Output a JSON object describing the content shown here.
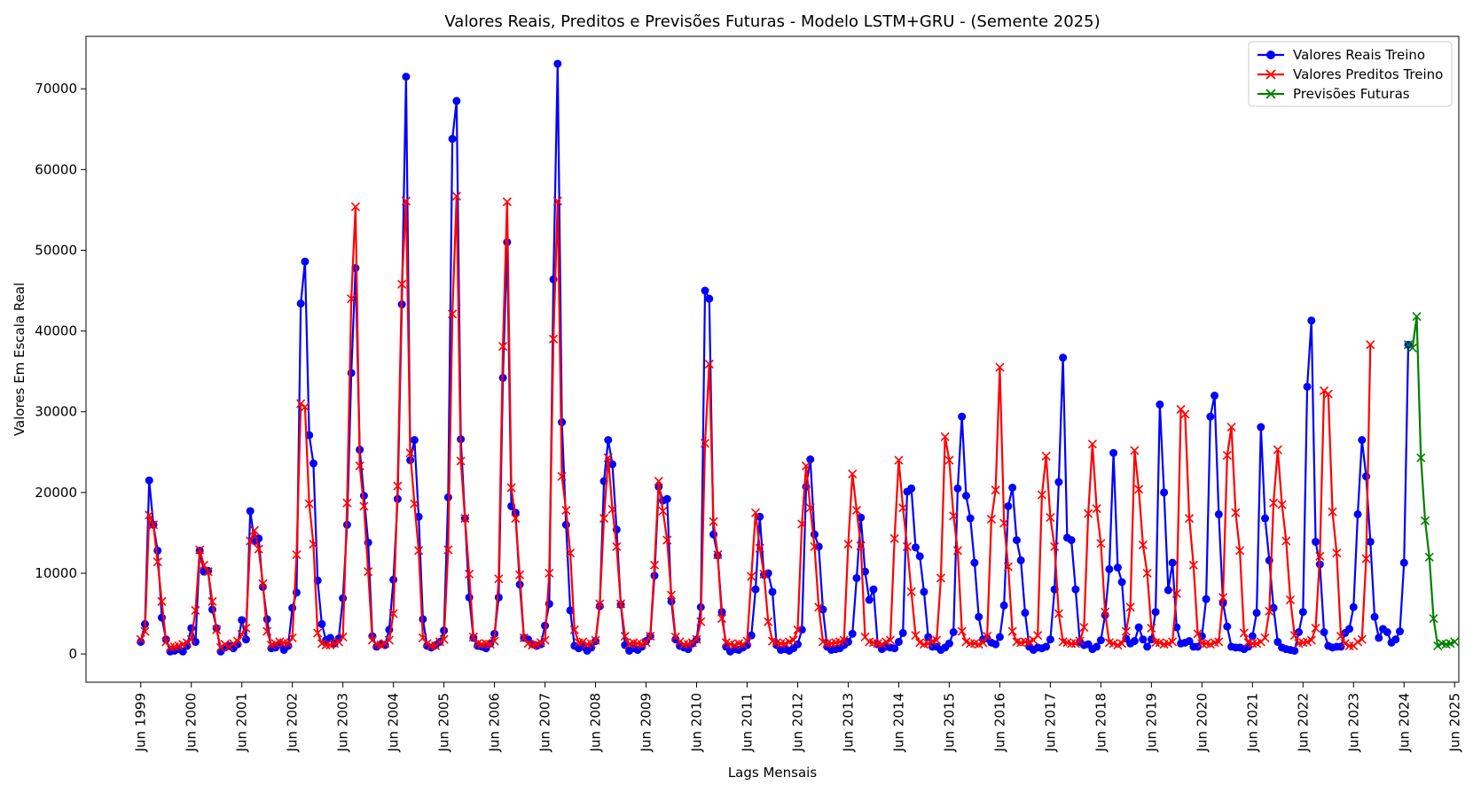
{
  "chart_data": {
    "type": "line",
    "title": "Valores Reais, Preditos e Previsões Futuras - Modelo LSTM+GRU - (Semente 2025)",
    "xlabel": "Lags Mensais",
    "ylabel": "Valores Em Escala Real",
    "ylim": [
      -3500,
      76500
    ],
    "xlim_months_from_jun1999": [
      -13,
      313
    ],
    "y_ticks": [
      0,
      10000,
      20000,
      30000,
      40000,
      50000,
      60000,
      70000
    ],
    "x_ticks": [
      "Jun 1999",
      "Jun 2000",
      "Jun 2001",
      "Jun 2002",
      "Jun 2003",
      "Jun 2004",
      "Jun 2005",
      "Jun 2006",
      "Jun 2007",
      "Jun 2008",
      "Jun 2009",
      "Jun 2010",
      "Jun 2011",
      "Jun 2012",
      "Jun 2013",
      "Jun 2014",
      "Jun 2015",
      "Jun 2016",
      "Jun 2017",
      "Jun 2018",
      "Jun 2019",
      "Jun 2020",
      "Jun 2021",
      "Jun 2022",
      "Jun 2023",
      "Jun 2024",
      "Jun 2025"
    ],
    "legend_position": "top-right",
    "start_label": "Jun 1999",
    "series": [
      {
        "name": "Valores Reais Treino",
        "color": "#0000ff",
        "marker": "circle",
        "values": [
          1500,
          3700,
          21500,
          16000,
          12800,
          4500,
          1800,
          300,
          400,
          600,
          300,
          1000,
          3200,
          1500,
          12800,
          10200,
          10300,
          5500,
          3200,
          300,
          800,
          1000,
          700,
          1200,
          4200,
          1800,
          17700,
          14000,
          14300,
          8300,
          4300,
          700,
          800,
          1200,
          500,
          1000,
          5700,
          7600,
          43400,
          48600,
          27100,
          23600,
          9100,
          3700,
          1700,
          2000,
          1300,
          1900,
          6900,
          16000,
          34800,
          47800,
          25300,
          19600,
          13800,
          2200,
          900,
          1200,
          1100,
          3000,
          9200,
          19200,
          43300,
          71500,
          24000,
          26500,
          17000,
          4300,
          1000,
          800,
          1100,
          1500,
          2900,
          19400,
          63800,
          68500,
          26600,
          16800,
          7000,
          2000,
          1000,
          900,
          700,
          1300,
          2500,
          7000,
          34200,
          51000,
          18300,
          17500,
          8600,
          2000,
          1800,
          1200,
          1000,
          1200,
          3500,
          6200,
          46400,
          73100,
          28700,
          16000,
          5400,
          1000,
          700,
          900,
          400,
          800,
          1600,
          5900,
          21400,
          26500,
          23500,
          15400,
          6100,
          1100,
          400,
          700,
          500,
          900,
          1600,
          2200,
          9700,
          20700,
          19000,
          19200,
          6500,
          1800,
          1000,
          800,
          600,
          1300,
          1800,
          5800,
          45000,
          44000,
          14800,
          12200,
          5200,
          900,
          300,
          600,
          500,
          800,
          1100,
          2300,
          8000,
          17000,
          9800,
          10000,
          7700,
          1100,
          500,
          600,
          400,
          700,
          1200,
          3000,
          20700,
          24100,
          14800,
          13300,
          5500,
          900,
          500,
          600,
          700,
          1100,
          1500,
          2500,
          9400,
          16900,
          10200,
          6700,
          8000,
          1200,
          600,
          900,
          800,
          700,
          1500,
          2600,
          20100,
          20500,
          13200,
          12100,
          7700,
          2100,
          900,
          900,
          500,
          800,
          1300,
          2700,
          20500,
          29400,
          19600,
          16800,
          11300,
          4600,
          1800,
          1900,
          1400,
          1200,
          2100,
          6000,
          18300,
          20600,
          14100,
          11600,
          5100,
          900,
          500,
          800,
          700,
          900,
          1800,
          8000,
          21300,
          36700,
          14400,
          14100,
          8000,
          1500,
          1100,
          1200,
          600,
          900,
          1700,
          4800,
          10500,
          24900,
          10700,
          8900,
          1900,
          1300,
          1600,
          3300,
          1800,
          900,
          1800,
          5200,
          30900,
          20000,
          7900,
          11300,
          3300,
          1300,
          1400,
          1600,
          900,
          900,
          2200,
          6800,
          29400,
          32000,
          17300,
          6300,
          3400,
          900,
          800,
          800,
          600,
          900,
          2200,
          5100,
          28100,
          16800,
          11600,
          5700,
          1500,
          800,
          600,
          500,
          400,
          2700,
          5200,
          33100,
          41300,
          13900,
          11100,
          2700,
          1000,
          800,
          900,
          900,
          2600,
          3100,
          5800,
          17300,
          26500,
          22000,
          13900,
          4600,
          2000,
          3100,
          2700,
          1400,
          1800,
          2800,
          11300,
          38300
        ]
      },
      {
        "name": "Valores Preditos Treino",
        "color": "#ff0000",
        "marker": "x",
        "values": [
          1800,
          2800,
          17200,
          16000,
          11400,
          6500,
          1500,
          800,
          900,
          1000,
          1200,
          1400,
          1800,
          5400,
          12900,
          11000,
          10200,
          6500,
          3000,
          800,
          1200,
          900,
          1300,
          1600,
          2400,
          3200,
          14000,
          15300,
          13000,
          8700,
          2800,
          1100,
          1300,
          1500,
          1400,
          1300,
          2000,
          12300,
          31000,
          30600,
          18600,
          13600,
          2600,
          1300,
          1100,
          1100,
          1300,
          1500,
          2100,
          18700,
          44000,
          55400,
          23300,
          18300,
          10200,
          1700,
          1200,
          1100,
          1300,
          1700,
          5000,
          20800,
          45800,
          56100,
          24900,
          18600,
          12800,
          2000,
          1300,
          1000,
          1000,
          1500,
          1800,
          12900,
          42100,
          56700,
          23900,
          16800,
          9900,
          2100,
          1300,
          1200,
          1300,
          1200,
          1600,
          9300,
          38100,
          56000,
          20600,
          16800,
          9800,
          2000,
          1300,
          1100,
          1200,
          1400,
          1700,
          10000,
          39000,
          56100,
          22000,
          17800,
          12500,
          3000,
          1400,
          1500,
          1200,
          1300,
          1700,
          6200,
          16800,
          24300,
          17900,
          13300,
          6200,
          2200,
          1200,
          1400,
          1300,
          1200,
          1400,
          2200,
          11000,
          21400,
          17700,
          14100,
          7300,
          2100,
          1500,
          1200,
          1200,
          1400,
          1800,
          4000,
          26100,
          35900,
          16400,
          12300,
          4400,
          1400,
          1200,
          1100,
          1300,
          1200,
          1600,
          9600,
          17500,
          13100,
          9900,
          4000,
          1600,
          1400,
          1300,
          1300,
          1500,
          1700,
          3000,
          16100,
          23300,
          18100,
          13300,
          5800,
          1500,
          1300,
          1300,
          1400,
          1500,
          1700,
          13600,
          22300,
          17800,
          13400,
          2100,
          1500,
          1400,
          1300,
          1200,
          1500,
          1700,
          14300,
          24000,
          18100,
          13300,
          7700,
          2300,
          1400,
          1200,
          1300,
          1600,
          1700,
          9400,
          26900,
          24000,
          17100,
          12800,
          2800,
          1500,
          1300,
          1300,
          1200,
          1400,
          2200,
          16700,
          20300,
          35500,
          16200,
          10800,
          2800,
          1500,
          1400,
          1500,
          1500,
          1700,
          2300,
          19700,
          24500,
          16900,
          13300,
          5000,
          1500,
          1400,
          1300,
          1300,
          1600,
          3300,
          17400,
          26000,
          18000,
          13700,
          5200,
          1400,
          1300,
          1100,
          1300,
          2800,
          5800,
          25200,
          20400,
          13500,
          10000,
          3200,
          1400,
          1400,
          1200,
          1300,
          1500,
          7500,
          30300,
          29700,
          16800,
          11000,
          2500,
          1300,
          1300,
          1200,
          1400,
          1500,
          7000,
          24600,
          28100,
          17500,
          12800,
          2600,
          1400,
          1300,
          1300,
          1500,
          2000,
          5300,
          18700,
          25300,
          18500,
          14000,
          6700,
          2300,
          1300,
          1400,
          1500,
          1700,
          3200,
          12100,
          32600,
          32200,
          17600,
          12500,
          2200,
          1300,
          1000,
          1000,
          1500,
          1800,
          11800,
          38300
        ]
      },
      {
        "name": "Previsões Futuras",
        "color": "#008000",
        "marker": "x",
        "values": [
          38300,
          37900,
          41800,
          24300,
          16500,
          12000,
          4400,
          1000,
          1300,
          1200,
          1300,
          1500
        ]
      }
    ]
  }
}
